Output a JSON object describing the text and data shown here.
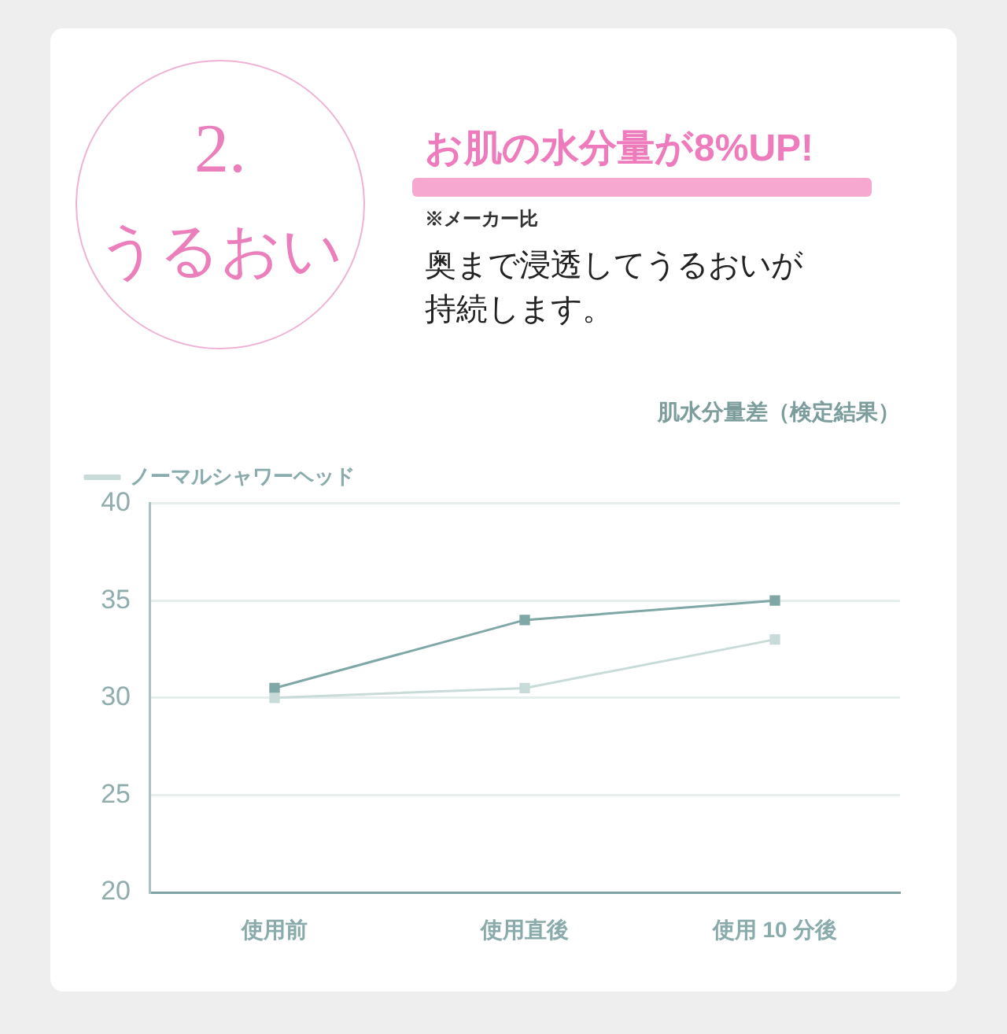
{
  "chart_data": {
    "type": "line",
    "title": "肌水分量差（検定結果）",
    "categories": [
      "使用前",
      "使用直後",
      "使用 10 分後"
    ],
    "series": [
      {
        "name": "ノーマルシャワーヘッド",
        "color": "#c9dbd8",
        "values": [
          30,
          30.5,
          33
        ]
      },
      {
        "color": "#7fa7a6",
        "values": [
          30.5,
          34,
          35
        ]
      }
    ],
    "ylim": [
      20,
      40
    ],
    "yticks": [
      20,
      25,
      30,
      35,
      40
    ],
    "grid": "y",
    "legend": "top left",
    "marker": "square",
    "line_style": "solid",
    "annotations": [
      "2.",
      "うるおい",
      "お肌の水分量が8%UP!",
      "※メーカー比",
      "奥まで浸透してうるおいが持続します。"
    ]
  }
}
